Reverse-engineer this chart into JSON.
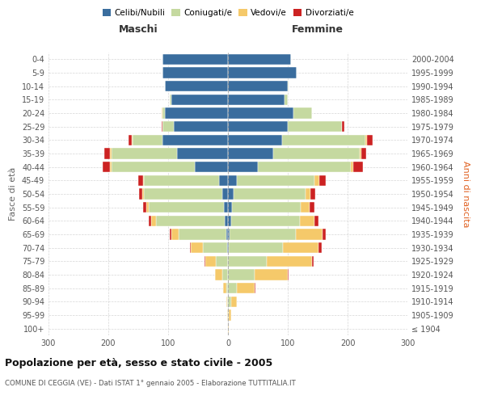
{
  "age_groups": [
    "100+",
    "95-99",
    "90-94",
    "85-89",
    "80-84",
    "75-79",
    "70-74",
    "65-69",
    "60-64",
    "55-59",
    "50-54",
    "45-49",
    "40-44",
    "35-39",
    "30-34",
    "25-29",
    "20-24",
    "15-19",
    "10-14",
    "5-9",
    "0-4"
  ],
  "birth_years": [
    "≤ 1904",
    "1905-1909",
    "1910-1914",
    "1915-1919",
    "1920-1924",
    "1925-1929",
    "1930-1934",
    "1935-1939",
    "1940-1944",
    "1945-1949",
    "1950-1954",
    "1955-1959",
    "1960-1964",
    "1965-1969",
    "1970-1974",
    "1975-1979",
    "1980-1984",
    "1985-1989",
    "1990-1994",
    "1995-1999",
    "2000-2004"
  ],
  "colors": {
    "celibi": "#3a6d9e",
    "coniugati": "#c5d9a0",
    "vedovi": "#f5c96a",
    "divorziati": "#cc2222"
  },
  "m_celibi": [
    0,
    0,
    0,
    0,
    0,
    0,
    2,
    3,
    5,
    7,
    10,
    15,
    55,
    85,
    110,
    90,
    105,
    95,
    105,
    110,
    110
  ],
  "m_coniugati": [
    0,
    0,
    1,
    3,
    10,
    20,
    40,
    80,
    115,
    125,
    130,
    125,
    140,
    110,
    50,
    20,
    5,
    2,
    0,
    0,
    0
  ],
  "m_vedovi": [
    0,
    1,
    2,
    5,
    12,
    18,
    20,
    12,
    8,
    5,
    3,
    2,
    2,
    2,
    1,
    0,
    1,
    0,
    0,
    0,
    0
  ],
  "m_divorziati": [
    0,
    0,
    0,
    0,
    0,
    1,
    1,
    2,
    5,
    5,
    5,
    8,
    12,
    10,
    5,
    1,
    0,
    0,
    0,
    0,
    0
  ],
  "f_celibi": [
    0,
    0,
    0,
    0,
    0,
    0,
    2,
    3,
    5,
    7,
    10,
    15,
    50,
    75,
    90,
    100,
    110,
    95,
    100,
    115,
    105
  ],
  "f_coniugati": [
    0,
    2,
    5,
    15,
    45,
    65,
    90,
    110,
    115,
    115,
    120,
    130,
    155,
    145,
    140,
    90,
    30,
    5,
    2,
    0,
    0
  ],
  "f_vedovi": [
    1,
    3,
    10,
    30,
    55,
    75,
    60,
    45,
    25,
    15,
    8,
    8,
    5,
    3,
    2,
    1,
    0,
    0,
    0,
    0,
    0
  ],
  "f_divorziati": [
    0,
    0,
    0,
    1,
    2,
    3,
    5,
    5,
    7,
    8,
    8,
    10,
    15,
    8,
    10,
    3,
    1,
    0,
    0,
    0,
    0
  ],
  "title": "Popolazione per età, sesso e stato civile - 2005",
  "subtitle": "COMUNE DI CEGGIA (VE) - Dati ISTAT 1° gennaio 2005 - Elaborazione TUTTITALIA.IT",
  "ylabel_left": "Fasce di età",
  "ylabel_right": "Anni di nascita",
  "xlabel_left": "Maschi",
  "xlabel_right": "Femmine",
  "xlim": 300,
  "bg_color": "#ffffff",
  "grid_color": "#cccccc",
  "bar_height": 0.8
}
